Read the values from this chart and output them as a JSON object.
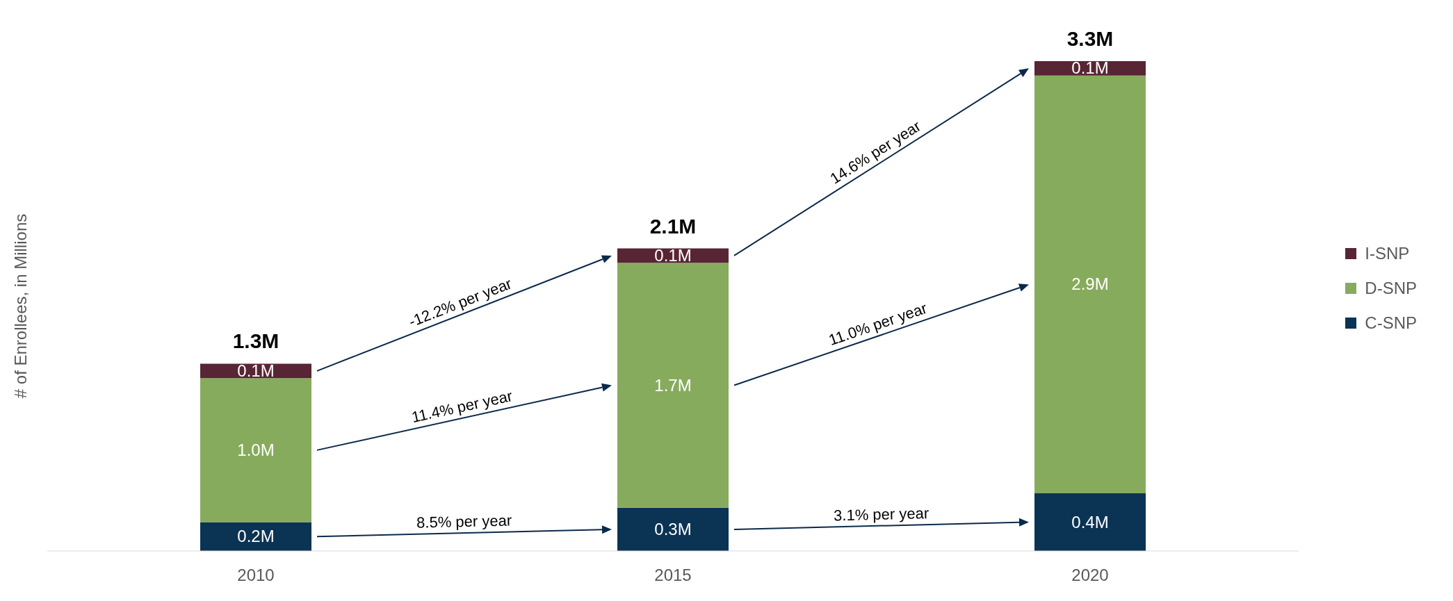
{
  "chart_data": {
    "type": "bar",
    "stacked": true,
    "ylabel": "# of Enrollees, in Millions",
    "categories": [
      "2010",
      "2015",
      "2020"
    ],
    "series": [
      {
        "name": "C-SNP",
        "color": "#0b3354",
        "values": [
          0.2,
          0.3,
          0.4
        ],
        "value_labels": [
          "0.2M",
          "0.3M",
          "0.4M"
        ]
      },
      {
        "name": "D-SNP",
        "color": "#87ab5c",
        "values": [
          1.0,
          1.7,
          2.9
        ],
        "value_labels": [
          "1.0M",
          "1.7M",
          "2.9M"
        ]
      },
      {
        "name": "I-SNP",
        "color": "#582534",
        "values": [
          0.1,
          0.1,
          0.1
        ],
        "value_labels": [
          "0.1M",
          "0.1M",
          "0.1M"
        ]
      }
    ],
    "totals": [
      "1.3M",
      "2.1M",
      "3.3M"
    ],
    "annotations": [
      "8.5% per year",
      "11.4% per year",
      "-12.2% per year",
      "3.1% per year",
      "11.0% per year",
      "14.6% per year"
    ],
    "legend": "right"
  }
}
